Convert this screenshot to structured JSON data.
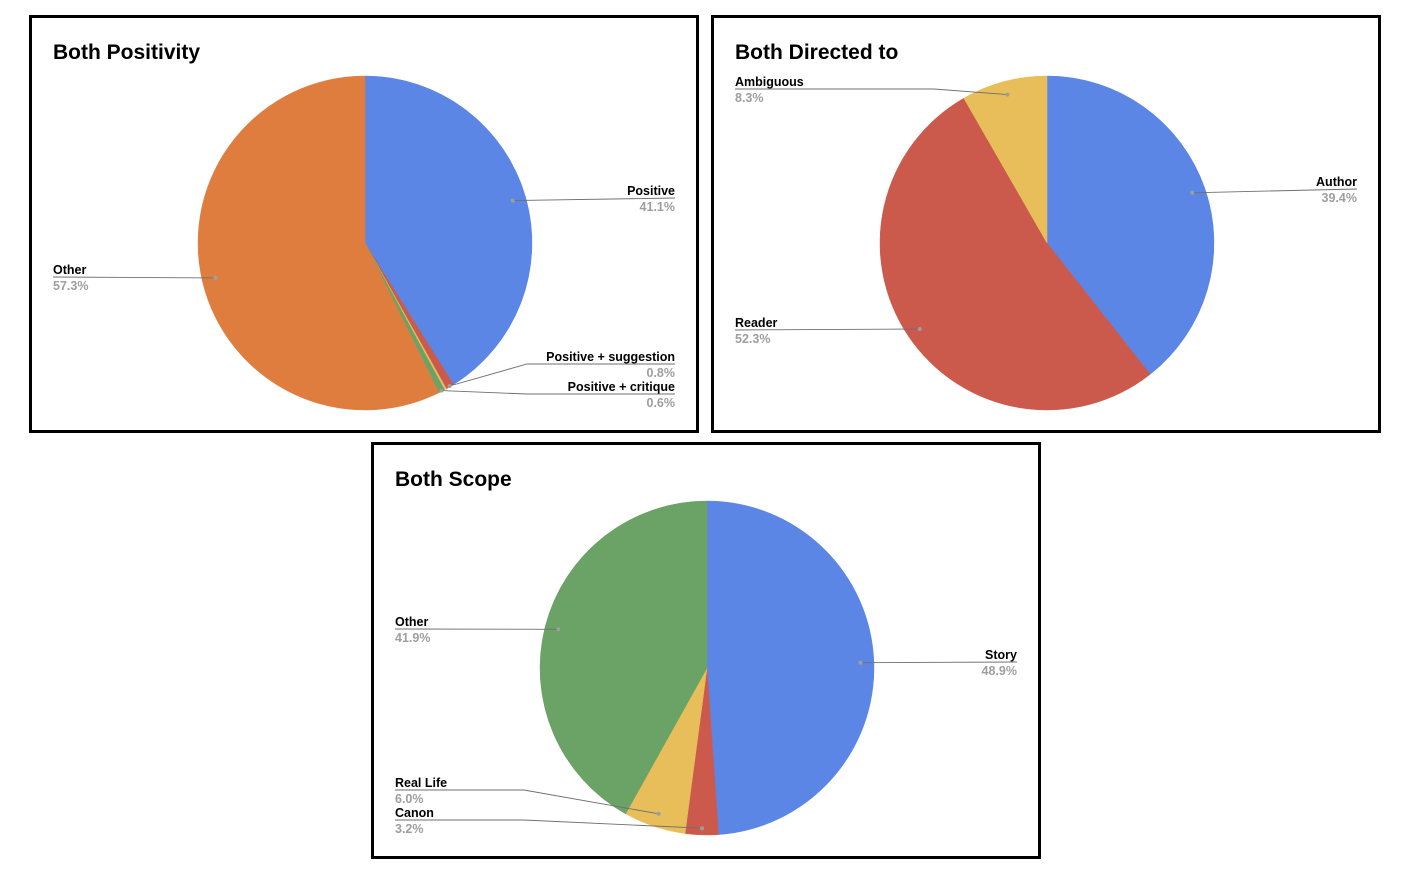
{
  "chart_data": [
    {
      "type": "pie",
      "title": "Both Positivity",
      "slices": [
        {
          "label": "Positive",
          "value": 41.1,
          "percent_label": "41.1%",
          "color": "#5b86e5",
          "show_label": true
        },
        {
          "label": "Positive + suggestion",
          "value": 0.8,
          "percent_label": "0.8%",
          "color": "#cc5a4c",
          "show_label": true
        },
        {
          "label": "",
          "value": 0.2,
          "percent_label": "",
          "color": "#e8be5a",
          "show_label": false
        },
        {
          "label": "Positive + critique",
          "value": 0.6,
          "percent_label": "0.6%",
          "color": "#6ba265",
          "show_label": true
        },
        {
          "label": "Other",
          "value": 57.3,
          "percent_label": "57.3%",
          "color": "#df7d3f",
          "show_label": true
        }
      ]
    },
    {
      "type": "pie",
      "title": "Both Directed to",
      "slices": [
        {
          "label": "Author",
          "value": 39.4,
          "percent_label": "39.4%",
          "color": "#5b86e5",
          "show_label": true
        },
        {
          "label": "Reader",
          "value": 52.3,
          "percent_label": "52.3%",
          "color": "#cc5a4c",
          "show_label": true
        },
        {
          "label": "Ambiguous",
          "value": 8.3,
          "percent_label": "8.3%",
          "color": "#e8be5a",
          "show_label": true
        }
      ]
    },
    {
      "type": "pie",
      "title": "Both Scope",
      "slices": [
        {
          "label": "Story",
          "value": 48.9,
          "percent_label": "48.9%",
          "color": "#5b86e5",
          "show_label": true
        },
        {
          "label": "Canon",
          "value": 3.2,
          "percent_label": "3.2%",
          "color": "#cc5a4c",
          "show_label": true
        },
        {
          "label": "Real Life",
          "value": 6.0,
          "percent_label": "6.0%",
          "color": "#e8be5a",
          "show_label": true
        },
        {
          "label": "Other",
          "value": 41.9,
          "percent_label": "41.9%",
          "color": "#6ba265",
          "show_label": true
        }
      ]
    }
  ]
}
